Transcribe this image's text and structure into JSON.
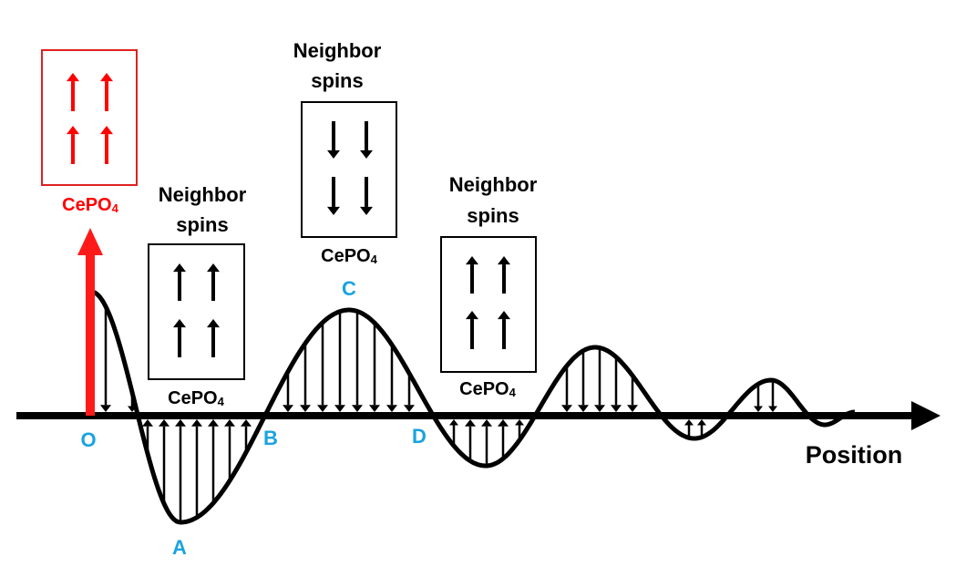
{
  "colors": {
    "source": "#ff0000",
    "point_label": "#1aa3e0",
    "ink": "#000000"
  },
  "source": {
    "material": "CePO",
    "material_sub": "4",
    "spin": "up"
  },
  "neighbors": [
    {
      "id": "left",
      "title_line1": "Neighbor",
      "title_line2": "spins",
      "material": "CePO",
      "material_sub": "4",
      "spin": "up"
    },
    {
      "id": "center",
      "title_line1": "Neighbor",
      "title_line2": "spins",
      "material": "CePO",
      "material_sub": "4",
      "spin": "down"
    },
    {
      "id": "right",
      "title_line1": "Neighbor",
      "title_line2": "spins",
      "material": "CePO",
      "material_sub": "4",
      "spin": "up"
    }
  ],
  "points": {
    "O": "O",
    "A": "A",
    "B": "B",
    "C": "C",
    "D": "D"
  },
  "axis_label": "Position",
  "icons": {
    "arrow": "arrow-icon"
  }
}
